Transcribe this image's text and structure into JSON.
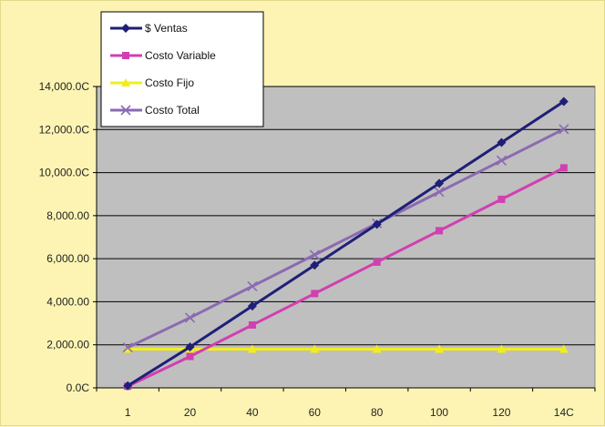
{
  "chart_data": {
    "type": "line",
    "x": [
      1,
      20,
      40,
      60,
      80,
      100,
      120,
      140
    ],
    "x_tick_labels": [
      "1",
      "20",
      "40",
      "60",
      "80",
      "100",
      "120",
      "14C"
    ],
    "y_tick_labels": [
      "0.0C",
      "2,000.00",
      "4,000.00",
      "6,000.00",
      "8,000.00",
      "10,000.0C",
      "12,000.0C",
      "14,000.0C"
    ],
    "ylim": [
      0,
      14000
    ],
    "grid": "horizontal",
    "legend_position": "top-left",
    "plot_background": "#bfbfbf",
    "chart_background": "#fdf4b3",
    "series": [
      {
        "name": "$ Ventas",
        "color": "#1f1f78",
        "marker": "diamond",
        "values": [
          95,
          1900,
          3800,
          5700,
          7600,
          9500,
          11400,
          13300
        ]
      },
      {
        "name": "Costo Variable",
        "color": "#d23fb0",
        "marker": "square",
        "values": [
          73,
          1460,
          2920,
          4380,
          5840,
          7300,
          8760,
          10220
        ]
      },
      {
        "name": "Costo Fijo",
        "color": "#f2ee1c",
        "marker": "triangle",
        "values": [
          1800,
          1800,
          1800,
          1800,
          1800,
          1800,
          1800,
          1800
        ]
      },
      {
        "name": "Costo Total",
        "color": "#8b6ab2",
        "marker": "x",
        "values": [
          1873,
          3260,
          4720,
          6180,
          7640,
          9100,
          10560,
          12020
        ]
      }
    ]
  }
}
